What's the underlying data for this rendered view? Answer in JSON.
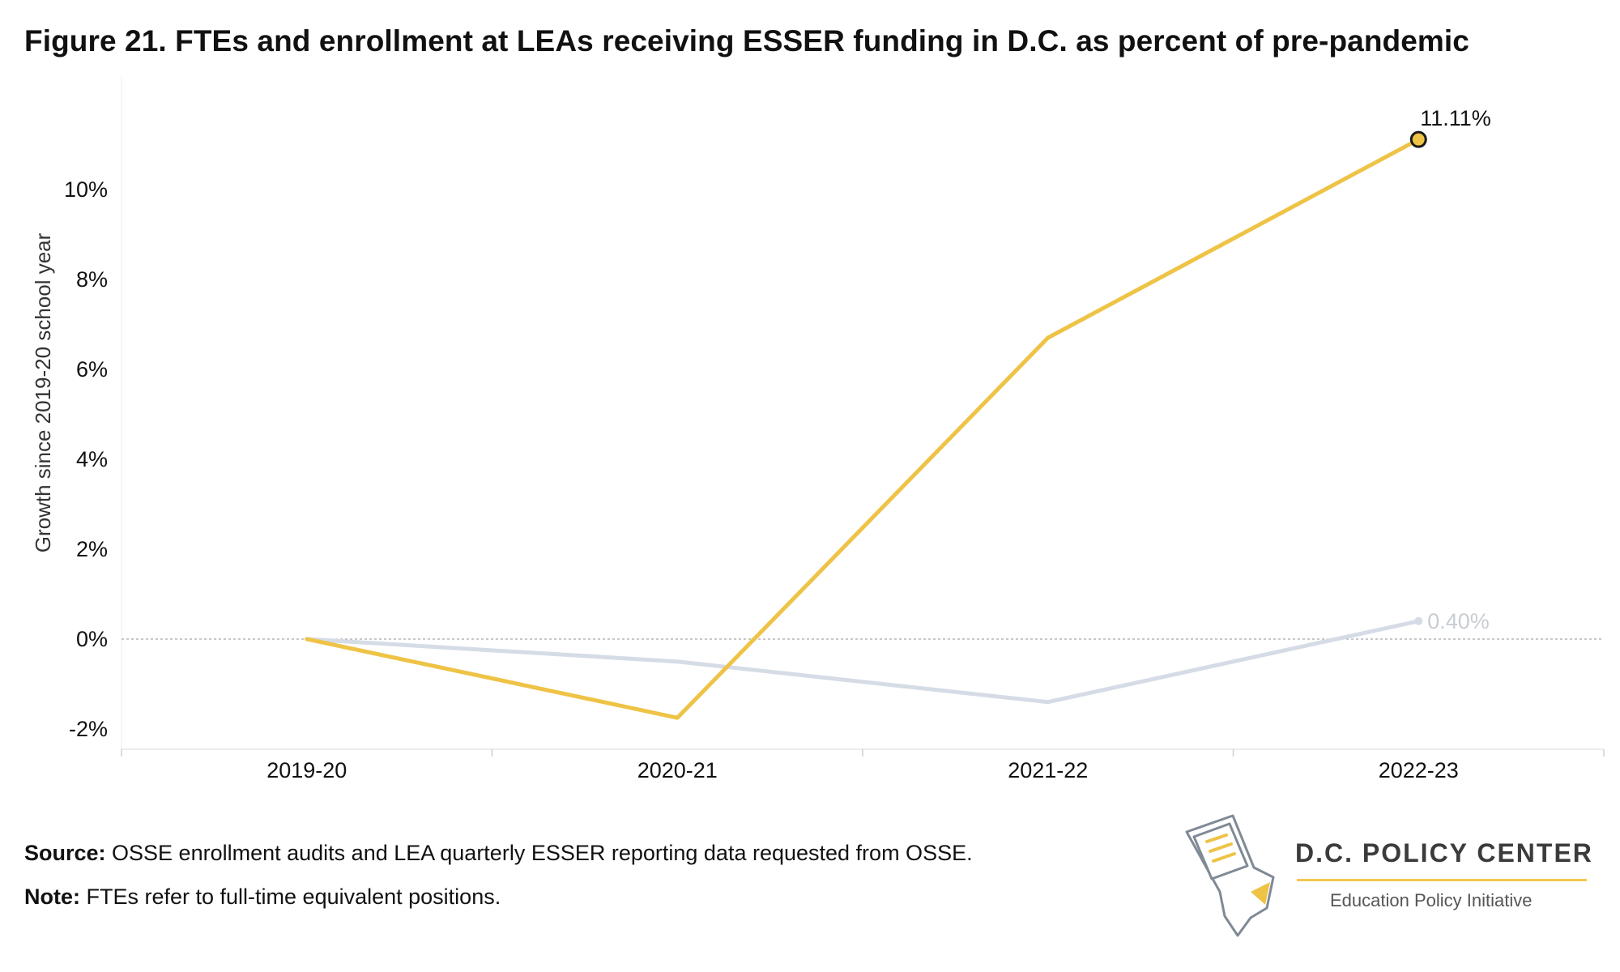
{
  "title": "Figure 21. FTEs and enrollment at LEAs receiving ESSER funding in D.C. as percent of pre-pandemic",
  "footnotes": {
    "source_label": "Source:",
    "source_text": " OSSE enrollment audits and LEA quarterly ESSER reporting data requested from OSSE.",
    "note_label": "Note:",
    "note_text": " FTEs refer to full-time equivalent positions."
  },
  "logo": {
    "name": "D.C. POLICY CENTER",
    "subtitle": "Education Policy Initiative",
    "icon": "dc-map-document-icon"
  },
  "chart_data": {
    "type": "line",
    "title": "",
    "xlabel": "",
    "ylabel": "Growth since 2019-20 school year",
    "categories": [
      "2019-20",
      "2020-21",
      "2021-22",
      "2022-23"
    ],
    "ylim": [
      -2.45,
      12.5
    ],
    "yticks": [
      -2,
      0,
      2,
      4,
      6,
      8,
      10
    ],
    "ytick_labels": [
      "-2%",
      "0%",
      "2%",
      "4%",
      "6%",
      "8%",
      "10%"
    ],
    "zero_line": "dotted",
    "grid": false,
    "legend": "none",
    "series": [
      {
        "values": [
          0,
          -0.5,
          -1.4,
          0.4
        ],
        "color": "#d5dce6",
        "end_label": "0.40%"
      },
      {
        "values": [
          0,
          -1.75,
          6.7,
          11.11
        ],
        "color": "#eec346",
        "end_label": "11.11%"
      }
    ]
  }
}
